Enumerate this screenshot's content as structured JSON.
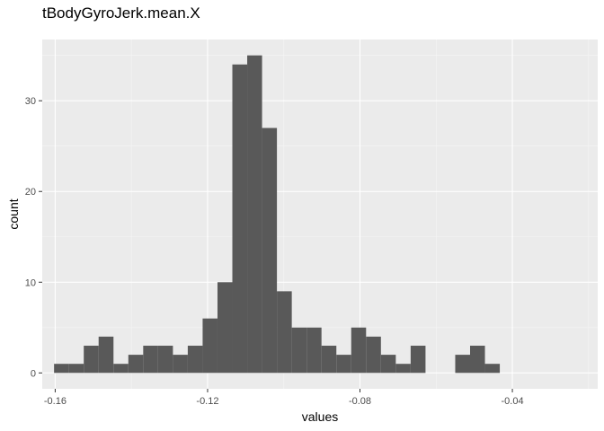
{
  "chart_data": {
    "type": "bar",
    "title": "tBodyGyroJerk.mean.X",
    "xlabel": "values",
    "ylabel": "count",
    "xlim": [
      -0.1634,
      -0.0176
    ],
    "ylim": [
      -1.75,
      36.75
    ],
    "x_ticks": [
      -0.16,
      -0.12,
      -0.08,
      -0.04
    ],
    "x_tick_labels": [
      "-0.16",
      "-0.12",
      "-0.08",
      "-0.04"
    ],
    "y_ticks": [
      0,
      10,
      20,
      30
    ],
    "y_tick_labels": [
      "0",
      "10",
      "20",
      "30"
    ],
    "grid": true,
    "bins": [
      {
        "x0": -0.1603,
        "x1": -0.1564,
        "count": 1
      },
      {
        "x0": -0.1564,
        "x1": -0.1525,
        "count": 1
      },
      {
        "x0": -0.1525,
        "x1": -0.1486,
        "count": 3
      },
      {
        "x0": -0.1486,
        "x1": -0.1447,
        "count": 4
      },
      {
        "x0": -0.1447,
        "x1": -0.1408,
        "count": 1
      },
      {
        "x0": -0.1408,
        "x1": -0.1369,
        "count": 2
      },
      {
        "x0": -0.1369,
        "x1": -0.133,
        "count": 3
      },
      {
        "x0": -0.133,
        "x1": -0.1291,
        "count": 3
      },
      {
        "x0": -0.1291,
        "x1": -0.1252,
        "count": 2
      },
      {
        "x0": -0.1252,
        "x1": -0.1213,
        "count": 3
      },
      {
        "x0": -0.1213,
        "x1": -0.1174,
        "count": 6
      },
      {
        "x0": -0.1174,
        "x1": -0.1135,
        "count": 10
      },
      {
        "x0": -0.1135,
        "x1": -0.1096,
        "count": 34
      },
      {
        "x0": -0.1096,
        "x1": -0.1057,
        "count": 35
      },
      {
        "x0": -0.1057,
        "x1": -0.1018,
        "count": 27
      },
      {
        "x0": -0.1018,
        "x1": -0.0979,
        "count": 9
      },
      {
        "x0": -0.0979,
        "x1": -0.094,
        "count": 5
      },
      {
        "x0": -0.094,
        "x1": -0.0901,
        "count": 5
      },
      {
        "x0": -0.0901,
        "x1": -0.0862,
        "count": 3
      },
      {
        "x0": -0.0862,
        "x1": -0.0823,
        "count": 2
      },
      {
        "x0": -0.0823,
        "x1": -0.0784,
        "count": 5
      },
      {
        "x0": -0.0784,
        "x1": -0.0745,
        "count": 4
      },
      {
        "x0": -0.0745,
        "x1": -0.0706,
        "count": 2
      },
      {
        "x0": -0.0706,
        "x1": -0.0667,
        "count": 1
      },
      {
        "x0": -0.0667,
        "x1": -0.0628,
        "count": 3
      },
      {
        "x0": -0.0628,
        "x1": -0.0589,
        "count": 0
      },
      {
        "x0": -0.0589,
        "x1": -0.055,
        "count": 0
      },
      {
        "x0": -0.055,
        "x1": -0.0511,
        "count": 2
      },
      {
        "x0": -0.0511,
        "x1": -0.0472,
        "count": 3
      },
      {
        "x0": -0.0472,
        "x1": -0.0433,
        "count": 1
      }
    ],
    "colors": {
      "panel_background": "#ebebeb",
      "grid_major": "#ffffff",
      "grid_minor": "#f5f5f5",
      "bar_fill": "#595959",
      "tick_color": "#333333"
    }
  }
}
